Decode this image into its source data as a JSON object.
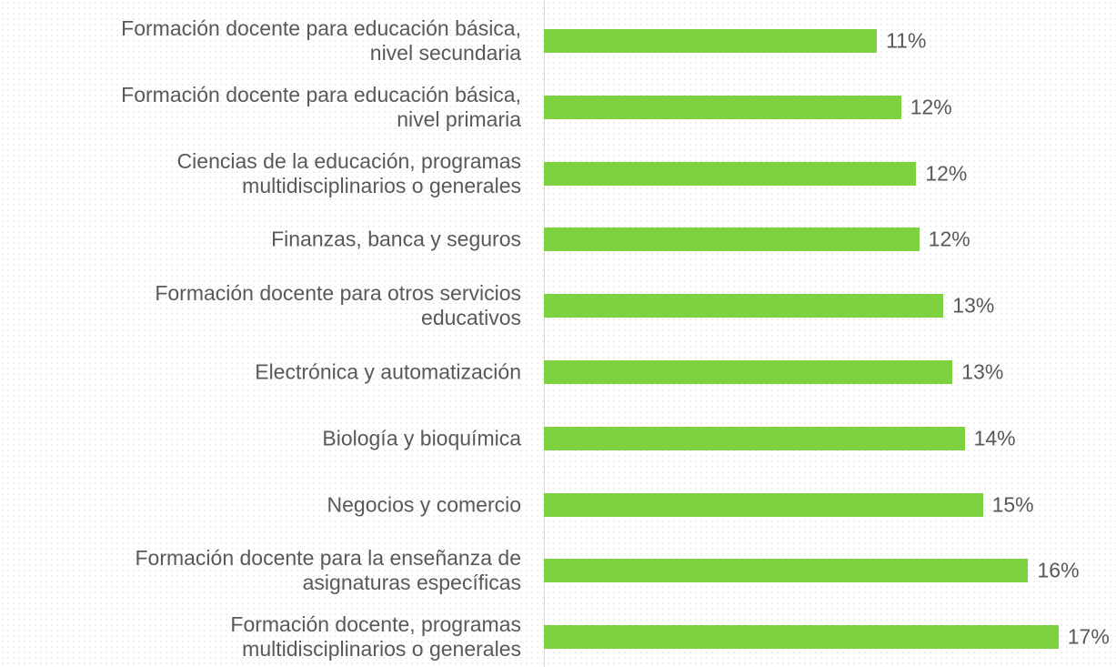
{
  "chart_data": {
    "type": "barh",
    "categories": [
      "Formación docente para educación básica,\nnivel secundaria",
      "Formación docente para educación básica,\nnivel primaria",
      "Ciencias de la educación, programas\nmultidisciplinarios o generales",
      "Finanzas, banca y seguros",
      "Formación docente para otros servicios\neducativos",
      "Electrónica y automatización",
      "Biología y bioquímica",
      "Negocios y comercio",
      "Formación docente para la enseñanza de\nasignaturas específicas",
      "Formación docente, programas\nmultidisciplinarios o generales"
    ],
    "values": [
      11.0,
      11.8,
      12.3,
      12.4,
      13.2,
      13.5,
      13.9,
      14.5,
      16.0,
      17.0
    ],
    "value_labels": [
      "11%",
      "12%",
      "12%",
      "12%",
      "13%",
      "13%",
      "14%",
      "15%",
      "16%",
      "17%"
    ],
    "color": "#7ed13f",
    "xlim": [
      0,
      18.9
    ]
  }
}
